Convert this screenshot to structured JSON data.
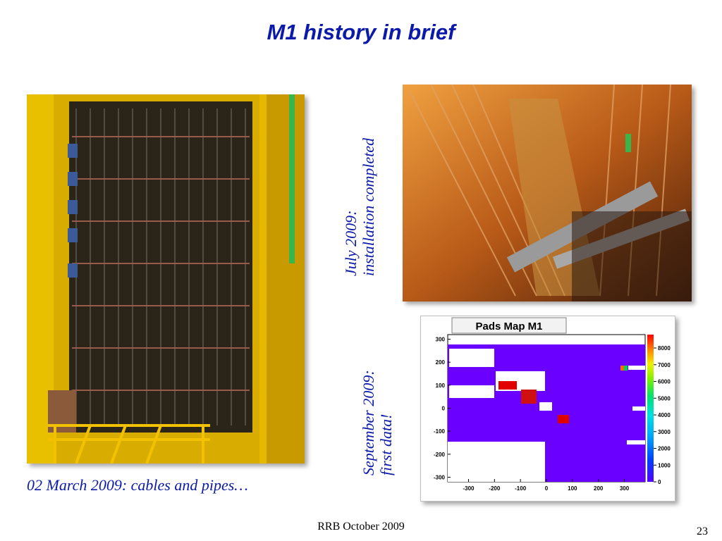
{
  "slide": {
    "title": "M1 history in brief",
    "left_caption": "02 March 2009: cables and pipes…",
    "july_caption_line1": "July  2009:",
    "july_caption_line2": "installation completed",
    "sept_caption_line1": "September  2009:",
    "sept_caption_line2": "first data!",
    "footer": "RRB October 2009",
    "page_number": "23"
  },
  "colors": {
    "title_text": "#0b1aa8",
    "caption_text": "#0b1aa8",
    "histogram_fill": "#6a00ff"
  },
  "chart_data": {
    "type": "heatmap",
    "title": "Pads Map M1",
    "xlabel": "",
    "ylabel": "",
    "x_ticks": [
      "-300",
      "-200",
      "-100",
      "0",
      "100",
      "200",
      "300"
    ],
    "y_ticks": [
      "300",
      "200",
      "100",
      "0",
      "-100",
      "-200",
      "-300"
    ],
    "colorbar_ticks": [
      "8000",
      "7000",
      "6000",
      "5000",
      "4000",
      "3000",
      "2000",
      "1000",
      "0"
    ],
    "xlim": [
      -380,
      380
    ],
    "ylim": [
      -320,
      320
    ],
    "z_range": [
      0,
      8800
    ]
  }
}
